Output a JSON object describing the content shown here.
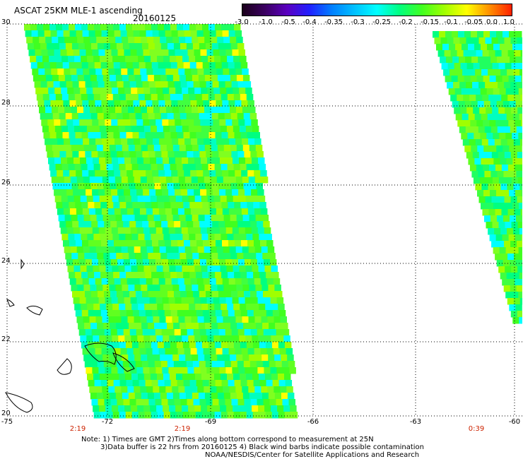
{
  "header": {
    "title": "ASCAT 25KM MLE-1 ascending",
    "date": "20160125"
  },
  "colorbar": {
    "labels": [
      "-3.0",
      "-1.0",
      "-0.5",
      "-0.4",
      "-0.35",
      "-0.3",
      "-0.25",
      "-0.2",
      "-0.15",
      "-0.1",
      "-0.05",
      "0.0",
      "1.0"
    ],
    "colors": [
      "#1a001a",
      "#3a0060",
      "#5a00c0",
      "#2020ff",
      "#0080ff",
      "#00c0ff",
      "#00ffff",
      "#00ff80",
      "#40ff20",
      "#a0ff00",
      "#ffff00",
      "#ff9000",
      "#ff2000"
    ]
  },
  "axes": {
    "lat_labels": [
      "30",
      "28",
      "26",
      "24",
      "22",
      "20"
    ],
    "lon_labels": [
      "-75",
      "-72",
      "-69",
      "-66",
      "-63",
      "-60"
    ],
    "time_labels": [
      "2:19",
      "2:19",
      "0:39"
    ]
  },
  "notes": {
    "line1": "Note: 1) Times are GMT 2)Times along bottom correspond to measurement at 25N",
    "line2": "3)Data buffer is 22 hrs from 20160125 4) Black wind barbs indicate possible contamination",
    "line3": "NOAA/NESDIS/Center for Satellite Applications and Research"
  }
}
